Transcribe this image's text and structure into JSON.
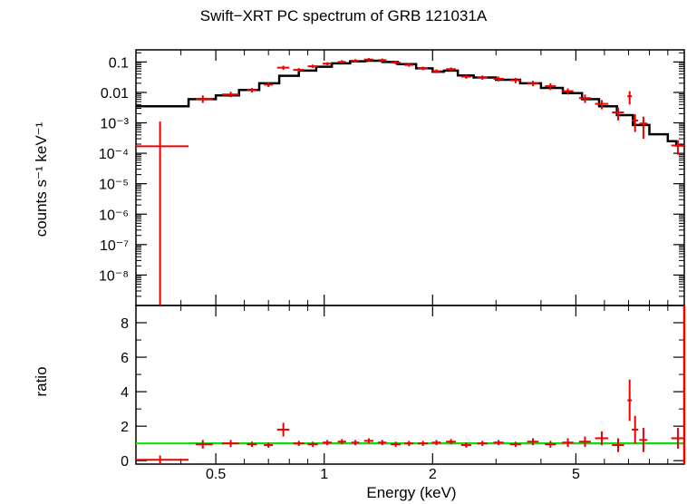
{
  "chart_data": [
    {
      "panel": "spectrum",
      "type": "scatter",
      "title": "Swift−XRT PC spectrum of GRB 121031A",
      "ylabel": "counts s⁻¹ keV⁻¹",
      "xscale": "log",
      "yscale": "log",
      "xlim": [
        0.3,
        10
      ],
      "ylim": [
        1e-09,
        0.25
      ],
      "ytick_labels": [
        "10⁻⁸",
        "10⁻⁷",
        "10⁻⁶",
        "10⁻⁵",
        "10⁻⁴",
        "10⁻³",
        "0.01",
        "0.1"
      ],
      "ytick_values": [
        1e-08,
        1e-07,
        1e-06,
        1e-05,
        0.0001,
        0.001,
        0.01,
        0.1
      ],
      "colors": {
        "data": "#ee0000",
        "model": "#000000"
      },
      "series": [
        {
          "kind": "data",
          "points": [
            {
              "x": 0.35,
              "xlo": 0.3,
              "xhi": 0.42,
              "y": 0.00017,
              "ylo": 1e-09,
              "yhi": 0.0011
            },
            {
              "x": 0.46,
              "xlo": 0.44,
              "xhi": 0.49,
              "y": 0.006,
              "ylo": 0.0045,
              "yhi": 0.008
            },
            {
              "x": 0.55,
              "xlo": 0.52,
              "xhi": 0.58,
              "y": 0.0085,
              "ylo": 0.007,
              "yhi": 0.0105
            },
            {
              "x": 0.63,
              "xlo": 0.61,
              "xhi": 0.65,
              "y": 0.012,
              "ylo": 0.01,
              "yhi": 0.014
            },
            {
              "x": 0.7,
              "xlo": 0.68,
              "xhi": 0.72,
              "y": 0.018,
              "ylo": 0.015,
              "yhi": 0.021
            },
            {
              "x": 0.77,
              "xlo": 0.74,
              "xhi": 0.8,
              "y": 0.065,
              "ylo": 0.055,
              "yhi": 0.075
            },
            {
              "x": 0.85,
              "xlo": 0.82,
              "xhi": 0.88,
              "y": 0.055,
              "ylo": 0.048,
              "yhi": 0.063
            },
            {
              "x": 0.93,
              "xlo": 0.9,
              "xhi": 0.96,
              "y": 0.072,
              "ylo": 0.063,
              "yhi": 0.082
            },
            {
              "x": 1.02,
              "xlo": 0.99,
              "xhi": 1.05,
              "y": 0.088,
              "ylo": 0.078,
              "yhi": 0.098
            },
            {
              "x": 1.12,
              "xlo": 1.09,
              "xhi": 1.15,
              "y": 0.1,
              "ylo": 0.09,
              "yhi": 0.115
            },
            {
              "x": 1.22,
              "xlo": 1.19,
              "xhi": 1.25,
              "y": 0.11,
              "ylo": 0.098,
              "yhi": 0.124
            },
            {
              "x": 1.33,
              "xlo": 1.29,
              "xhi": 1.37,
              "y": 0.12,
              "ylo": 0.105,
              "yhi": 0.135
            },
            {
              "x": 1.45,
              "xlo": 1.41,
              "xhi": 1.49,
              "y": 0.115,
              "ylo": 0.1,
              "yhi": 0.13
            },
            {
              "x": 1.58,
              "xlo": 1.53,
              "xhi": 1.63,
              "y": 0.095,
              "ylo": 0.083,
              "yhi": 0.108
            },
            {
              "x": 1.72,
              "xlo": 1.67,
              "xhi": 1.77,
              "y": 0.08,
              "ylo": 0.07,
              "yhi": 0.09
            },
            {
              "x": 1.88,
              "xlo": 1.82,
              "xhi": 1.94,
              "y": 0.062,
              "ylo": 0.054,
              "yhi": 0.07
            },
            {
              "x": 2.05,
              "xlo": 1.99,
              "xhi": 2.11,
              "y": 0.05,
              "ylo": 0.043,
              "yhi": 0.057
            },
            {
              "x": 2.25,
              "xlo": 2.18,
              "xhi": 2.32,
              "y": 0.058,
              "ylo": 0.05,
              "yhi": 0.066
            },
            {
              "x": 2.48,
              "xlo": 2.4,
              "xhi": 2.56,
              "y": 0.033,
              "ylo": 0.028,
              "yhi": 0.038
            },
            {
              "x": 2.75,
              "xlo": 2.66,
              "xhi": 2.84,
              "y": 0.031,
              "ylo": 0.026,
              "yhi": 0.036
            },
            {
              "x": 3.05,
              "xlo": 2.95,
              "xhi": 3.15,
              "y": 0.028,
              "ylo": 0.023,
              "yhi": 0.033
            },
            {
              "x": 3.4,
              "xlo": 3.28,
              "xhi": 3.52,
              "y": 0.025,
              "ylo": 0.02,
              "yhi": 0.03
            },
            {
              "x": 3.8,
              "xlo": 3.66,
              "xhi": 3.94,
              "y": 0.02,
              "ylo": 0.016,
              "yhi": 0.024
            },
            {
              "x": 4.25,
              "xlo": 4.1,
              "xhi": 4.4,
              "y": 0.016,
              "ylo": 0.012,
              "yhi": 0.02
            },
            {
              "x": 4.75,
              "xlo": 4.58,
              "xhi": 4.92,
              "y": 0.011,
              "ylo": 0.0085,
              "yhi": 0.0135
            },
            {
              "x": 5.3,
              "xlo": 5.1,
              "xhi": 5.5,
              "y": 0.0065,
              "ylo": 0.0045,
              "yhi": 0.0085
            },
            {
              "x": 5.9,
              "xlo": 5.65,
              "xhi": 6.15,
              "y": 0.0042,
              "ylo": 0.0028,
              "yhi": 0.0056
            },
            {
              "x": 6.55,
              "xlo": 6.3,
              "xhi": 6.8,
              "y": 0.0022,
              "ylo": 0.0012,
              "yhi": 0.0032
            },
            {
              "x": 7.05,
              "xlo": 6.95,
              "xhi": 7.15,
              "y": 0.0075,
              "ylo": 0.004,
              "yhi": 0.011
            },
            {
              "x": 7.3,
              "xlo": 7.15,
              "xhi": 7.45,
              "y": 0.0012,
              "ylo": 0.0005,
              "yhi": 0.0019
            },
            {
              "x": 7.7,
              "xlo": 7.5,
              "xhi": 7.9,
              "y": 0.00095,
              "ylo": 0.0003,
              "yhi": 0.0016
            },
            {
              "x": 9.6,
              "xlo": 9.2,
              "xhi": 10.0,
              "y": 0.00018,
              "ylo": 9e-05,
              "yhi": 0.00027
            }
          ]
        },
        {
          "kind": "model",
          "steps": [
            {
              "xlo": 0.3,
              "xhi": 0.42,
              "y": 0.0035
            },
            {
              "xlo": 0.42,
              "xhi": 0.5,
              "y": 0.006
            },
            {
              "xlo": 0.5,
              "xhi": 0.58,
              "y": 0.008
            },
            {
              "xlo": 0.58,
              "xhi": 0.66,
              "y": 0.012
            },
            {
              "xlo": 0.66,
              "xhi": 0.75,
              "y": 0.02
            },
            {
              "xlo": 0.75,
              "xhi": 0.85,
              "y": 0.035
            },
            {
              "xlo": 0.85,
              "xhi": 0.95,
              "y": 0.052
            },
            {
              "xlo": 0.95,
              "xhi": 1.05,
              "y": 0.07
            },
            {
              "xlo": 1.05,
              "xhi": 1.18,
              "y": 0.09
            },
            {
              "xlo": 1.18,
              "xhi": 1.3,
              "y": 0.105
            },
            {
              "xlo": 1.3,
              "xhi": 1.45,
              "y": 0.11
            },
            {
              "xlo": 1.45,
              "xhi": 1.6,
              "y": 0.1
            },
            {
              "xlo": 1.6,
              "xhi": 1.8,
              "y": 0.085
            },
            {
              "xlo": 1.8,
              "xhi": 2.0,
              "y": 0.062
            },
            {
              "xlo": 2.0,
              "xhi": 2.15,
              "y": 0.048
            },
            {
              "xlo": 2.15,
              "xhi": 2.35,
              "y": 0.052
            },
            {
              "xlo": 2.35,
              "xhi": 2.6,
              "y": 0.036
            },
            {
              "xlo": 2.6,
              "xhi": 3.0,
              "y": 0.031
            },
            {
              "xlo": 3.0,
              "xhi": 3.5,
              "y": 0.026
            },
            {
              "xlo": 3.5,
              "xhi": 4.0,
              "y": 0.02
            },
            {
              "xlo": 4.0,
              "xhi": 4.6,
              "y": 0.014
            },
            {
              "xlo": 4.6,
              "xhi": 5.2,
              "y": 0.0095
            },
            {
              "xlo": 5.2,
              "xhi": 5.8,
              "y": 0.006
            },
            {
              "xlo": 5.8,
              "xhi": 6.5,
              "y": 0.0035
            },
            {
              "xlo": 6.5,
              "xhi": 7.2,
              "y": 0.0018
            },
            {
              "xlo": 7.2,
              "xhi": 8.0,
              "y": 0.00085
            },
            {
              "xlo": 8.0,
              "xhi": 9.0,
              "y": 0.00042
            },
            {
              "xlo": 9.0,
              "xhi": 9.5,
              "y": 0.00025
            },
            {
              "xlo": 9.5,
              "xhi": 10.0,
              "y": 0.00018
            }
          ]
        }
      ]
    },
    {
      "panel": "ratio",
      "type": "scatter",
      "ylabel": "ratio",
      "xlabel": "Energy (keV)",
      "xscale": "log",
      "yscale": "linear",
      "xlim": [
        0.3,
        10
      ],
      "ylim": [
        -0.2,
        9
      ],
      "ytick_labels": [
        "0",
        "2",
        "4",
        "6",
        "8"
      ],
      "ytick_values": [
        0,
        2,
        4,
        6,
        8
      ],
      "xtick_labels": [
        "0.5",
        "1",
        "2",
        "5"
      ],
      "xtick_values": [
        0.5,
        1,
        2,
        5
      ],
      "reference_line": {
        "y": 1,
        "color": "#00ee00"
      },
      "colors": {
        "data": "#ee0000",
        "model": "#000000"
      },
      "points": [
        {
          "x": 0.35,
          "xlo": 0.3,
          "xhi": 0.42,
          "y": 0.05,
          "ylo": -0.2,
          "yhi": 0.3
        },
        {
          "x": 0.46,
          "xlo": 0.44,
          "xhi": 0.49,
          "y": 0.95,
          "ylo": 0.7,
          "yhi": 1.2
        },
        {
          "x": 0.55,
          "xlo": 0.52,
          "xhi": 0.58,
          "y": 1.0,
          "ylo": 0.8,
          "yhi": 1.2
        },
        {
          "x": 0.63,
          "xlo": 0.61,
          "xhi": 0.65,
          "y": 0.95,
          "ylo": 0.8,
          "yhi": 1.1
        },
        {
          "x": 0.7,
          "xlo": 0.68,
          "xhi": 0.72,
          "y": 0.9,
          "ylo": 0.75,
          "yhi": 1.05
        },
        {
          "x": 0.77,
          "xlo": 0.74,
          "xhi": 0.8,
          "y": 1.8,
          "ylo": 1.4,
          "yhi": 2.2
        },
        {
          "x": 0.85,
          "xlo": 0.82,
          "xhi": 0.88,
          "y": 1.0,
          "ylo": 0.85,
          "yhi": 1.15
        },
        {
          "x": 0.93,
          "xlo": 0.9,
          "xhi": 0.96,
          "y": 0.95,
          "ylo": 0.8,
          "yhi": 1.1
        },
        {
          "x": 1.02,
          "xlo": 0.99,
          "xhi": 1.05,
          "y": 1.05,
          "ylo": 0.9,
          "yhi": 1.2
        },
        {
          "x": 1.12,
          "xlo": 1.09,
          "xhi": 1.15,
          "y": 1.1,
          "ylo": 0.95,
          "yhi": 1.25
        },
        {
          "x": 1.22,
          "xlo": 1.19,
          "xhi": 1.25,
          "y": 1.05,
          "ylo": 0.9,
          "yhi": 1.2
        },
        {
          "x": 1.33,
          "xlo": 1.29,
          "xhi": 1.37,
          "y": 1.15,
          "ylo": 1.0,
          "yhi": 1.3
        },
        {
          "x": 1.45,
          "xlo": 1.41,
          "xhi": 1.49,
          "y": 1.05,
          "ylo": 0.9,
          "yhi": 1.2
        },
        {
          "x": 1.58,
          "xlo": 1.53,
          "xhi": 1.63,
          "y": 0.95,
          "ylo": 0.8,
          "yhi": 1.1
        },
        {
          "x": 1.72,
          "xlo": 1.67,
          "xhi": 1.77,
          "y": 1.0,
          "ylo": 0.85,
          "yhi": 1.15
        },
        {
          "x": 1.88,
          "xlo": 1.82,
          "xhi": 1.94,
          "y": 1.0,
          "ylo": 0.85,
          "yhi": 1.15
        },
        {
          "x": 2.05,
          "xlo": 1.99,
          "xhi": 2.11,
          "y": 1.05,
          "ylo": 0.9,
          "yhi": 1.2
        },
        {
          "x": 2.25,
          "xlo": 2.18,
          "xhi": 2.32,
          "y": 1.1,
          "ylo": 0.95,
          "yhi": 1.25
        },
        {
          "x": 2.48,
          "xlo": 2.4,
          "xhi": 2.56,
          "y": 0.9,
          "ylo": 0.75,
          "yhi": 1.05
        },
        {
          "x": 2.75,
          "xlo": 2.66,
          "xhi": 2.84,
          "y": 1.0,
          "ylo": 0.85,
          "yhi": 1.15
        },
        {
          "x": 3.05,
          "xlo": 2.95,
          "xhi": 3.15,
          "y": 1.05,
          "ylo": 0.9,
          "yhi": 1.2
        },
        {
          "x": 3.4,
          "xlo": 3.28,
          "xhi": 3.52,
          "y": 0.95,
          "ylo": 0.8,
          "yhi": 1.1
        },
        {
          "x": 3.8,
          "xlo": 3.66,
          "xhi": 3.94,
          "y": 1.1,
          "ylo": 0.9,
          "yhi": 1.3
        },
        {
          "x": 4.25,
          "xlo": 4.1,
          "xhi": 4.4,
          "y": 0.95,
          "ylo": 0.75,
          "yhi": 1.15
        },
        {
          "x": 4.75,
          "xlo": 4.58,
          "xhi": 4.92,
          "y": 1.05,
          "ylo": 0.8,
          "yhi": 1.3
        },
        {
          "x": 5.3,
          "xlo": 5.1,
          "xhi": 5.5,
          "y": 1.1,
          "ylo": 0.8,
          "yhi": 1.4
        },
        {
          "x": 5.9,
          "xlo": 5.65,
          "xhi": 6.15,
          "y": 1.3,
          "ylo": 0.9,
          "yhi": 1.7
        },
        {
          "x": 6.55,
          "xlo": 6.3,
          "xhi": 6.8,
          "y": 0.9,
          "ylo": 0.5,
          "yhi": 1.3
        },
        {
          "x": 7.05,
          "xlo": 6.95,
          "xhi": 7.15,
          "y": 3.5,
          "ylo": 2.3,
          "yhi": 4.7
        },
        {
          "x": 7.3,
          "xlo": 7.15,
          "xhi": 7.45,
          "y": 1.8,
          "ylo": 1.0,
          "yhi": 2.6
        },
        {
          "x": 7.7,
          "xlo": 7.5,
          "xhi": 7.9,
          "y": 1.2,
          "ylo": 0.5,
          "yhi": 1.9
        },
        {
          "x": 9.6,
          "xlo": 9.2,
          "xhi": 10.0,
          "y": 1.3,
          "ylo": 0.7,
          "yhi": 1.9
        }
      ]
    }
  ]
}
